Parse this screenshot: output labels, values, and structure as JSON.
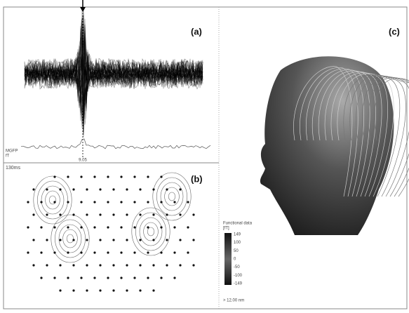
{
  "panels": {
    "a": {
      "label": "(a)",
      "trace_label": "MGFP",
      "trace_unit": "fT",
      "time_marker": "9.05"
    },
    "b": {
      "label": "(b)",
      "latency": "130ms",
      "colorbar": {
        "title": "Functional data",
        "unit": "[fT]",
        "ticks": [
          "149",
          "100",
          "50",
          "0",
          "-50",
          "-100",
          "-149"
        ]
      }
    },
    "c": {
      "label": "(c)",
      "scale": "> 12.00 nm"
    }
  }
}
